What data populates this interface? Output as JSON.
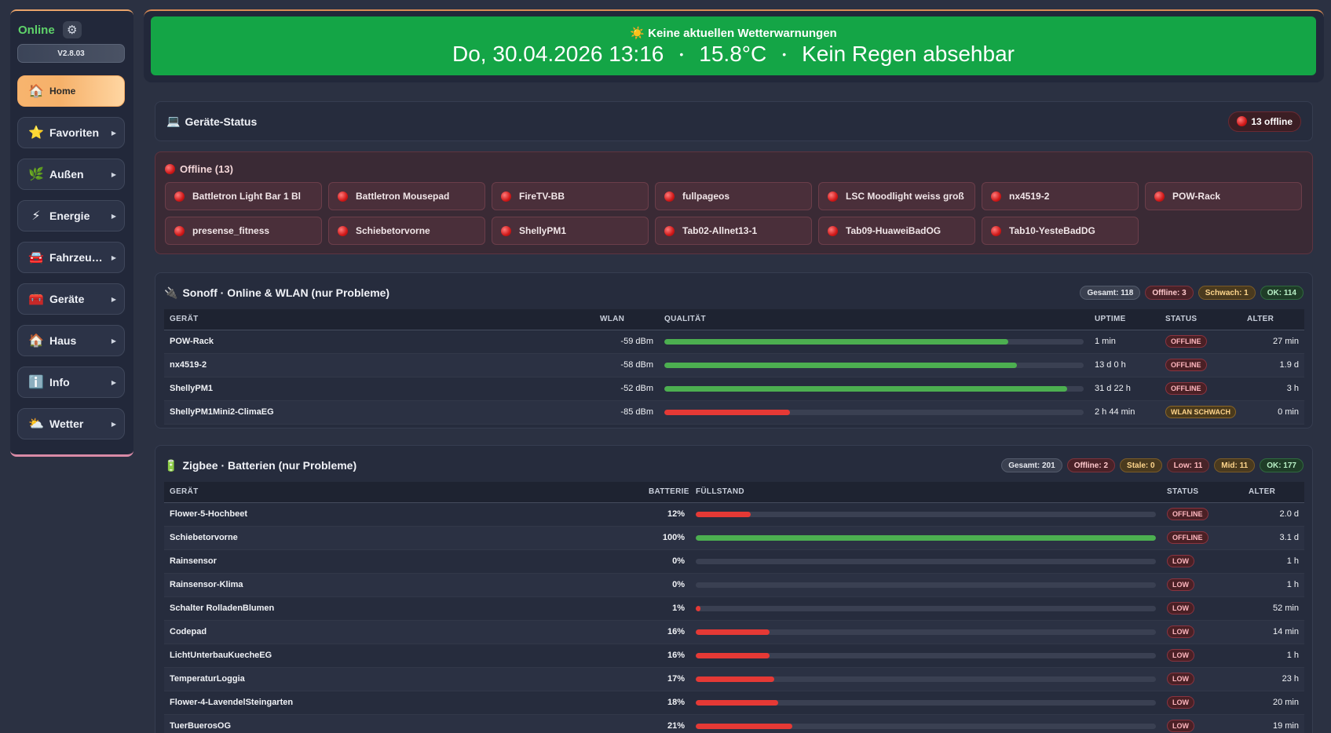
{
  "sidebar": {
    "status": "Online",
    "version": "V2.8.03",
    "items": [
      {
        "label": "Home",
        "icon": "🏠",
        "icon_name": "house-icon"
      },
      {
        "label": "Favoriten",
        "icon": "⭐",
        "icon_name": "star-icon"
      },
      {
        "label": "Außen",
        "icon": "🌿",
        "icon_name": "leaf-icon"
      },
      {
        "label": "Energie",
        "icon": "⚡",
        "icon_name": "lightning-icon"
      },
      {
        "label": "Fahrzeu…",
        "icon": "🚘",
        "icon_name": "car-icon"
      },
      {
        "label": "Geräte",
        "icon": "🧰",
        "icon_name": "toolbox-icon"
      },
      {
        "label": "Haus",
        "icon": "🏠",
        "icon_name": "house-icon"
      },
      {
        "label": "Info",
        "icon": "ℹ️",
        "icon_name": "info-icon"
      },
      {
        "label": "Wetter",
        "icon": "⛅",
        "icon_name": "cloud-sun-icon"
      }
    ]
  },
  "banner": {
    "title": "☀️ Keine aktuellen Wetterwarnungen",
    "datetime": "Do, 30.04.2026 13:16",
    "temperature": "15.8°C",
    "rain": "Kein Regen absehbar",
    "color": "#14a546"
  },
  "device_status": {
    "title": "Geräte-Status",
    "offline_pill": "13 offline",
    "offline_header": "Offline (13)",
    "offline_devices": [
      "Battletron Light Bar 1 Bl",
      "Battletron Mousepad",
      "FireTV-BB",
      "fullpageos",
      "LSC Moodlight weiss groß",
      "nx4519-2",
      "POW-Rack",
      "presense_fitness",
      "Schiebetorvorne",
      "ShellyPM1",
      "Tab02-Allnet13-1",
      "Tab09-HuaweiBadOG",
      "Tab10-YesteBadDG"
    ]
  },
  "sonoff": {
    "title": "Sonoff · Online & WLAN (nur Probleme)",
    "badges": [
      "Gesamt: 118",
      "Offline: 3",
      "Schwach: 1",
      "OK: 114"
    ],
    "columns": [
      "GERÄT",
      "WLAN",
      "QUALITÄT",
      "UPTIME",
      "STATUS",
      "ALTER"
    ],
    "rows": [
      {
        "device": "POW-Rack",
        "wlan": "-59 dBm",
        "quality": 0.82,
        "uptime": "1 min",
        "status": "OFFLINE",
        "age": "27 min"
      },
      {
        "device": "nx4519-2",
        "wlan": "-58 dBm",
        "quality": 0.84,
        "uptime": "13 d 0 h",
        "status": "OFFLINE",
        "age": "1.9 d"
      },
      {
        "device": "ShellyPM1",
        "wlan": "-52 dBm",
        "quality": 0.96,
        "uptime": "31 d 22 h",
        "status": "OFFLINE",
        "age": "3 h"
      },
      {
        "device": "ShellyPM1Mini2-ClimaEG",
        "wlan": "-85 dBm",
        "quality": 0.3,
        "uptime": "2 h 44 min",
        "status": "WLAN SCHWACH",
        "age": "0 min"
      }
    ]
  },
  "zigbee": {
    "title": "Zigbee · Batterien (nur Probleme)",
    "badges": [
      "Gesamt: 201",
      "Offline: 2",
      "Stale: 0",
      "Low: 11",
      "Mid: 11",
      "OK: 177"
    ],
    "columns": [
      "GERÄT",
      "BATTERIE",
      "FÜLLSTAND",
      "STATUS",
      "ALTER"
    ],
    "rows": [
      {
        "device": "Flower-5-Hochbeet",
        "battery": "12%",
        "level": 0.12,
        "status": "OFFLINE",
        "age": "2.0 d"
      },
      {
        "device": "Schiebetorvorne",
        "battery": "100%",
        "level": 1.0,
        "status": "OFFLINE",
        "age": "3.1 d"
      },
      {
        "device": "Rainsensor",
        "battery": "0%",
        "level": 0.0,
        "status": "LOW",
        "age": "1 h"
      },
      {
        "device": "Rainsensor-Klima",
        "battery": "0%",
        "level": 0.0,
        "status": "LOW",
        "age": "1 h"
      },
      {
        "device": "Schalter RolladenBlumen",
        "battery": "1%",
        "level": 0.01,
        "status": "LOW",
        "age": "52 min"
      },
      {
        "device": "Codepad",
        "battery": "16%",
        "level": 0.16,
        "status": "LOW",
        "age": "14 min"
      },
      {
        "device": "LichtUnterbauKuecheEG",
        "battery": "16%",
        "level": 0.16,
        "status": "LOW",
        "age": "1 h"
      },
      {
        "device": "TemperaturLoggia",
        "battery": "17%",
        "level": 0.17,
        "status": "LOW",
        "age": "23 h"
      },
      {
        "device": "Flower-4-LavendelSteingarten",
        "battery": "18%",
        "level": 0.18,
        "status": "LOW",
        "age": "20 min"
      },
      {
        "device": "TuerBuerosOG",
        "battery": "21%",
        "level": 0.21,
        "status": "LOW",
        "age": "19 min"
      }
    ]
  },
  "colors": {
    "bar_good": "#4caf50",
    "bar_bad": "#e53935",
    "accent": "#f6b16a"
  }
}
